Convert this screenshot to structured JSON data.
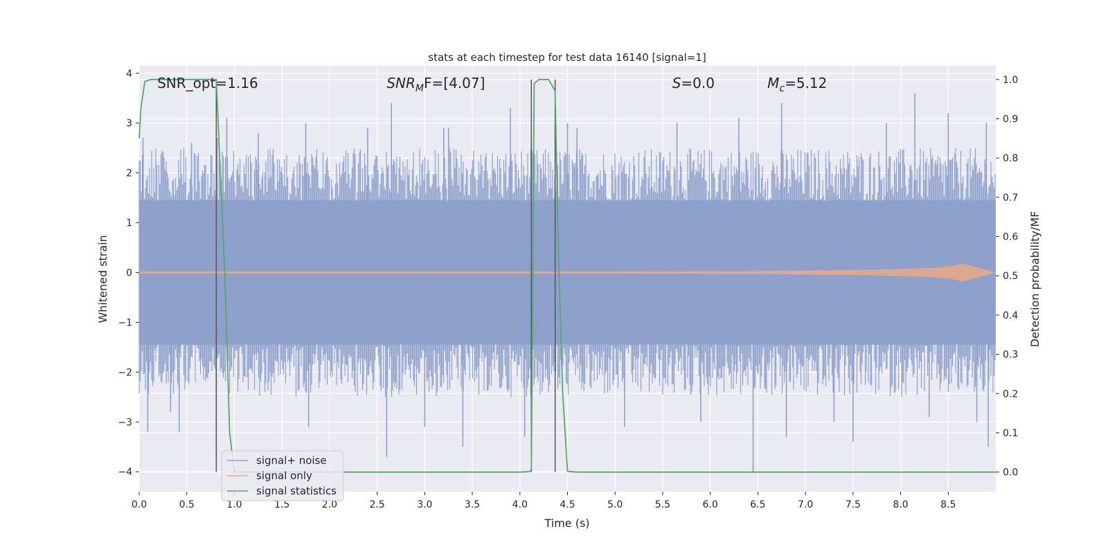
{
  "chart_data": {
    "type": "line",
    "title": "stats at each timestep for test data 16140 [signal=1]",
    "xlabel": "Time (s)",
    "ylabel_left": "Whitened strain",
    "ylabel_right": "Detection probability/MF",
    "xlim": [
      0,
      9.0
    ],
    "ylim_left": [
      -4.4,
      4.15
    ],
    "ylim_right": [
      -0.05,
      1.035
    ],
    "x_ticks": [
      0.0,
      0.5,
      1.0,
      1.5,
      2.0,
      2.5,
      3.0,
      3.5,
      4.0,
      4.5,
      5.0,
      5.5,
      6.0,
      6.5,
      7.0,
      7.5,
      8.0,
      8.5
    ],
    "x_tick_labels": [
      "0.0",
      "0.5",
      "1.0",
      "1.5",
      "2.0",
      "2.5",
      "3.0",
      "3.5",
      "4.0",
      "4.5",
      "5.0",
      "5.5",
      "6.0",
      "6.5",
      "7.0",
      "7.5",
      "8.0",
      "8.5"
    ],
    "y_left_ticks": [
      -4,
      -3,
      -2,
      -1,
      0,
      1,
      2,
      3,
      4
    ],
    "y_left_tick_labels": [
      "−4",
      "−3",
      "−2",
      "−1",
      "0",
      "1",
      "2",
      "3",
      "4"
    ],
    "y_right_ticks": [
      0.0,
      0.1,
      0.2,
      0.3,
      0.4,
      0.5,
      0.6,
      0.7,
      0.8,
      0.9,
      1.0
    ],
    "y_right_tick_labels": [
      "0.0",
      "0.1",
      "0.2",
      "0.3",
      "0.4",
      "0.5",
      "0.6",
      "0.7",
      "0.8",
      "0.9",
      "1.0"
    ],
    "grid": true,
    "annotations": [
      {
        "text": "SNR_opt=1.16",
        "x": 0.19,
        "y": 3.8
      },
      {
        "base": "SNR",
        "sub": "M",
        "rest": "F=[4.07]",
        "italic": true,
        "x": 2.6,
        "y": 3.8
      },
      {
        "base": "S",
        "sub": "",
        "rest": "=0.0",
        "italic": true,
        "x": 5.6,
        "y": 3.8
      },
      {
        "base": "M",
        "sub": "c",
        "rest": "=5.12",
        "italic": true,
        "x": 6.6,
        "y": 3.8
      }
    ],
    "vertical_lines": [
      0.81,
      4.12,
      4.37
    ],
    "series": [
      {
        "name": "signal+ noise",
        "color": "#8da0cb",
        "axis": "left",
        "envelope_x": [
          0.0,
          9.0
        ],
        "envelope_high": 2.0,
        "envelope_low": -2.0,
        "peaks": [
          {
            "x": 0.04,
            "y": 2.7
          },
          {
            "x": 0.09,
            "y": -3.2
          },
          {
            "x": 0.33,
            "y": -2.8
          },
          {
            "x": 0.42,
            "y": -3.2
          },
          {
            "x": 0.55,
            "y": 2.6
          },
          {
            "x": 0.81,
            "y": -3.8
          },
          {
            "x": 0.82,
            "y": 2.7
          },
          {
            "x": 0.92,
            "y": 3.1
          },
          {
            "x": 1.25,
            "y": 2.8
          },
          {
            "x": 1.75,
            "y": 3.0
          },
          {
            "x": 1.78,
            "y": -3.1
          },
          {
            "x": 2.4,
            "y": 2.9
          },
          {
            "x": 2.6,
            "y": -3.7
          },
          {
            "x": 2.65,
            "y": 3.4
          },
          {
            "x": 3.0,
            "y": -3.1
          },
          {
            "x": 3.2,
            "y": 2.9
          },
          {
            "x": 3.25,
            "y": 2.9
          },
          {
            "x": 3.4,
            "y": -3.5
          },
          {
            "x": 3.9,
            "y": 3.3
          },
          {
            "x": 4.05,
            "y": -3.3
          },
          {
            "x": 4.12,
            "y": 2.7
          },
          {
            "x": 4.5,
            "y": 3.0
          },
          {
            "x": 4.6,
            "y": 2.9
          },
          {
            "x": 5.1,
            "y": -3.1
          },
          {
            "x": 5.65,
            "y": 3.0
          },
          {
            "x": 5.9,
            "y": -3.0
          },
          {
            "x": 6.3,
            "y": 3.1
          },
          {
            "x": 6.45,
            "y": -4.0
          },
          {
            "x": 6.75,
            "y": 3.4
          },
          {
            "x": 6.8,
            "y": -3.3
          },
          {
            "x": 7.3,
            "y": -3.0
          },
          {
            "x": 7.5,
            "y": -3.4
          },
          {
            "x": 7.85,
            "y": 3.0
          },
          {
            "x": 8.15,
            "y": 3.6
          },
          {
            "x": 8.3,
            "y": -2.9
          },
          {
            "x": 8.5,
            "y": 3.2
          },
          {
            "x": 8.8,
            "y": -3.0
          },
          {
            "x": 8.9,
            "y": 3.0
          },
          {
            "x": 8.92,
            "y": -3.5
          }
        ]
      },
      {
        "name": "signal only",
        "color": "#e5a98a",
        "axis": "left",
        "x": [
          0.0,
          5.0,
          6.5,
          7.5,
          8.0,
          8.4,
          8.6,
          8.65,
          9.0
        ],
        "amplitude": [
          0.02,
          0.02,
          0.03,
          0.05,
          0.07,
          0.1,
          0.15,
          0.18,
          0.0
        ]
      },
      {
        "name": "signal statistics",
        "color": "#55a868",
        "axis": "right",
        "x": [
          0.0,
          0.02,
          0.06,
          0.12,
          0.2,
          0.5,
          0.8,
          0.81,
          0.9,
          0.95,
          1.0,
          2.0,
          3.0,
          4.0,
          4.1,
          4.12,
          4.15,
          4.2,
          4.25,
          4.3,
          4.35,
          4.37,
          4.4,
          4.45,
          4.5,
          4.6,
          6.0,
          8.0,
          9.0
        ],
        "y": [
          0.85,
          0.93,
          0.995,
          1.0,
          1.0,
          1.0,
          1.0,
          1.0,
          0.5,
          0.1,
          0.0,
          0.0,
          0.0,
          0.0,
          0.001,
          0.005,
          0.99,
          1.0,
          1.0,
          1.0,
          0.98,
          0.97,
          0.6,
          0.2,
          0.002,
          0.0,
          0.0,
          0.0,
          0.0
        ]
      }
    ],
    "legend_position": "lower-left"
  }
}
